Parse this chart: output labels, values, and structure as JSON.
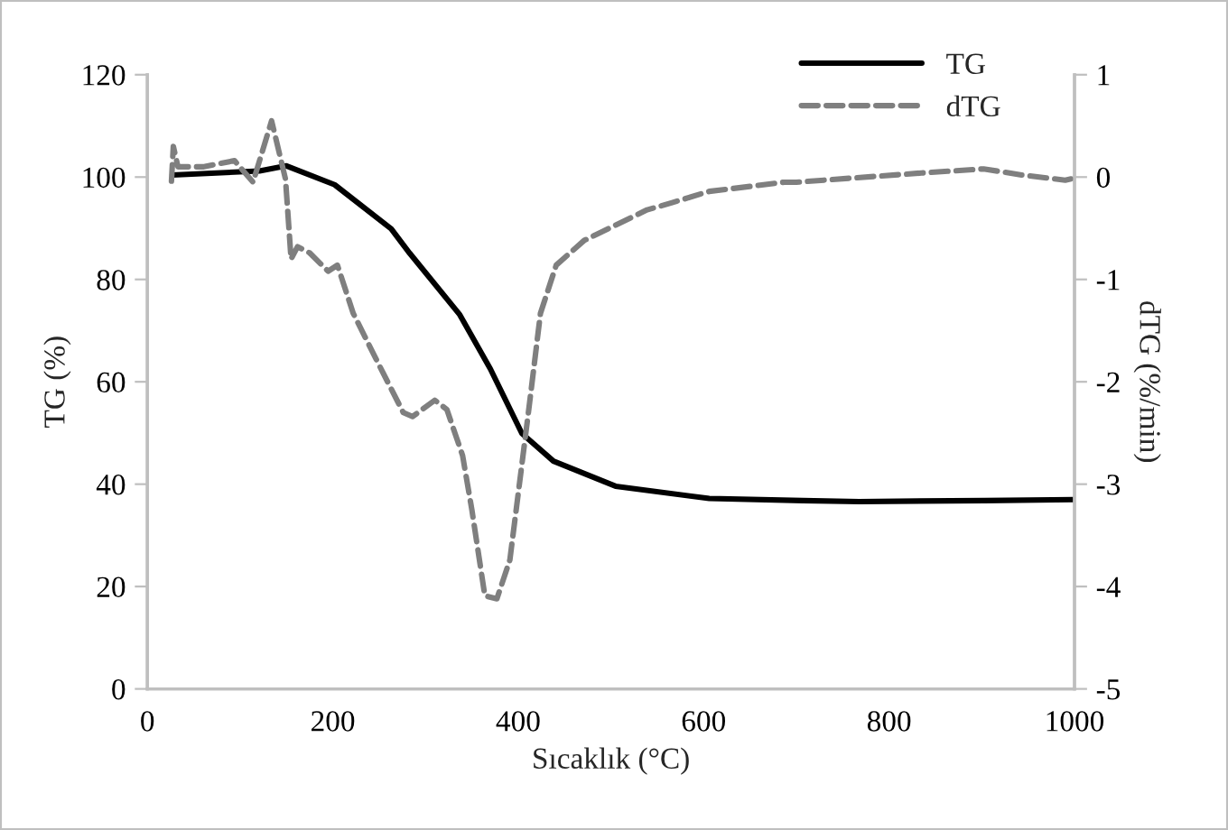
{
  "chart_data": {
    "type": "line",
    "xlabel": "Sıcaklık (°C)",
    "ylabel": "TG (%)",
    "y2label": "dTG (%/min)",
    "xlim": [
      0,
      1000
    ],
    "xticks": [
      0,
      200,
      400,
      600,
      800,
      1000
    ],
    "ylim": [
      0,
      120
    ],
    "yticks": [
      0,
      20,
      40,
      60,
      80,
      100,
      120
    ],
    "y2lim": [
      -5,
      1
    ],
    "y2ticks": [
      -5,
      -4,
      -3,
      -2,
      -1,
      0,
      1
    ],
    "grid": false,
    "legend": "top right",
    "series": [
      {
        "name": "TG",
        "color": "#000000",
        "line_style": "solid",
        "x": [
          27,
          121,
          150,
          202,
          263,
          283,
          337,
          370,
          404,
          438,
          505,
          606,
          707,
          768,
          903,
          1000
        ],
        "values": [
          100.4,
          101.2,
          102.2,
          98.5,
          89.9,
          85.1,
          73.1,
          62.5,
          49.9,
          44.5,
          39.6,
          37.2,
          36.8,
          36.6,
          36.8,
          37.0
        ]
      },
      {
        "name": "dTG",
        "color": "#7f7f7f",
        "line_style": "dashed",
        "axis": "y2",
        "x": [
          26,
          28,
          33,
          60,
          94,
          114,
          134,
          149,
          155,
          162,
          175,
          195,
          205,
          222,
          249,
          276,
          286,
          310,
          323,
          340,
          350,
          364,
          377,
          391,
          411,
          424,
          441,
          471,
          539,
          566,
          606,
          687,
          700,
          835,
          902,
          943,
          990,
          1000
        ],
        "values": [
          -0.04,
          0.3,
          0.1,
          0.1,
          0.16,
          -0.05,
          0.55,
          -0.02,
          -0.8,
          -0.68,
          -0.74,
          -0.92,
          -0.86,
          -1.33,
          -1.82,
          -2.3,
          -2.34,
          -2.18,
          -2.27,
          -2.72,
          -3.25,
          -4.09,
          -4.12,
          -3.74,
          -2.3,
          -1.33,
          -0.86,
          -0.62,
          -0.32,
          -0.25,
          -0.14,
          -0.05,
          -0.05,
          0.04,
          0.08,
          0.02,
          -0.03,
          -0.01
        ]
      }
    ]
  }
}
